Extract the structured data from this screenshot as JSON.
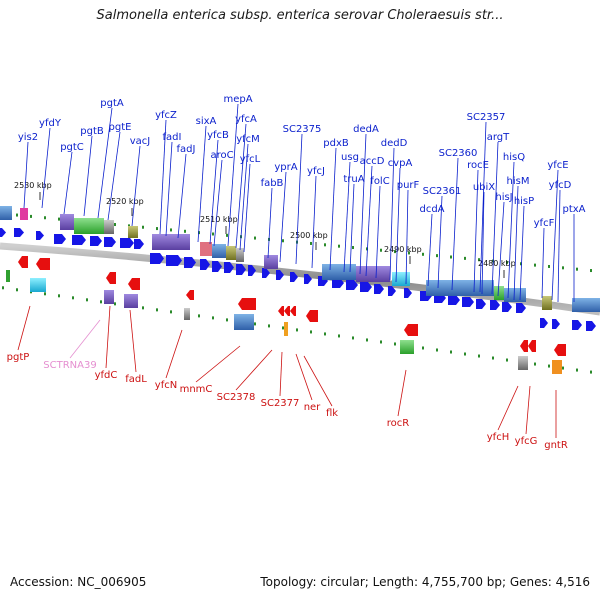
{
  "title": "Salmonella enterica subsp. enterica serovar Choleraesuis str...",
  "footer": {
    "accession": "Accession: NC_006905",
    "topology": "Topology: circular; Length: 4,755,700 bp; Genes: 4,516"
  },
  "ticks": [
    {
      "text": "2530 kbp"
    },
    {
      "text": "2520 kbp"
    },
    {
      "text": "2510 kbp"
    },
    {
      "text": "2500 kbp"
    },
    {
      "text": "2490 kbp"
    },
    {
      "text": "2480 kbp"
    }
  ],
  "top_genes": [
    "yis2",
    "yfdY",
    "pgtC",
    "pgtB",
    "pgtA",
    "pgtE",
    "vacJ",
    "yfcZ",
    "fadI",
    "fadJ",
    "sixA",
    "yfcB",
    "aroC",
    "mepA",
    "yfcA",
    "yfcM",
    "yfcL",
    "fabB",
    "yprA",
    "SC2375",
    "yfcJ",
    "pdxB",
    "usg",
    "truA",
    "dedA",
    "accD",
    "folC",
    "dedD",
    "cvpA",
    "purF",
    "dcdA",
    "SC2361",
    "SC2360",
    "SC2357",
    "rocE",
    "ubiX",
    "argT",
    "hisJ",
    "hisQ",
    "hisM",
    "hisP",
    "yfcF",
    "yfcE",
    "yfcD",
    "ptxA"
  ],
  "bottom_genes": [
    "pgtP",
    "SCTRNA39",
    "yfdC",
    "fadL",
    "yfcN",
    "mnmC",
    "SC2378",
    "SC2377",
    "ner",
    "flk",
    "rocR",
    "yfcH",
    "yfcG",
    "gntR"
  ],
  "colors": {
    "forward_arrow": "#1616e6",
    "reverse_arrow": "#e60f0f",
    "top_label": "#0a1fcc",
    "bottom_label": "#cc1111",
    "rna_label": "#e58fd0",
    "tick_mark": "#2a8a2a"
  }
}
